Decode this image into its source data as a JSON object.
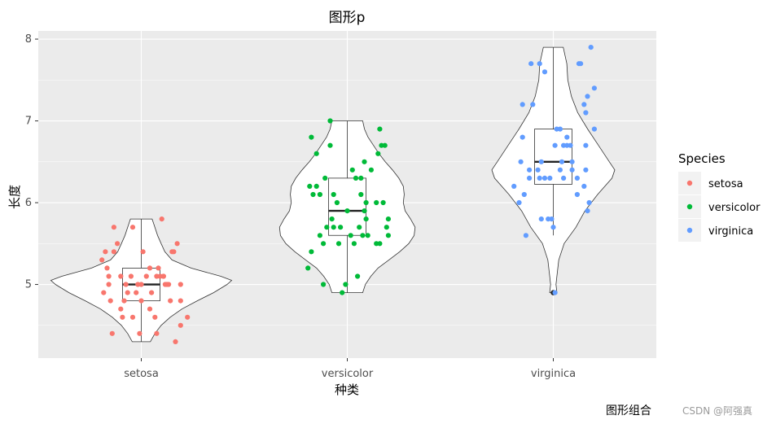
{
  "caption": "图形组合",
  "watermark": "CSDN @阿强真",
  "chart_data": {
    "type": "violin",
    "title": "图形p",
    "xlabel": "种类",
    "ylabel": "长度",
    "ylim": [
      4.1,
      8.1
    ],
    "yticks": [
      5,
      6,
      7,
      8
    ],
    "categories": [
      "setosa",
      "versicolor",
      "virginica"
    ],
    "legend": {
      "title": "Species",
      "position": "right",
      "entries": [
        {
          "name": "setosa",
          "color": "#F8766D"
        },
        {
          "name": "versicolor",
          "color": "#00BA38"
        },
        {
          "name": "virginica",
          "color": "#619CFF"
        }
      ]
    },
    "panel_background": "#EBEBEB",
    "grid": true,
    "violins": [
      {
        "category": "setosa",
        "min": 4.3,
        "max": 5.8,
        "widths": [
          [
            4.3,
            0.1
          ],
          [
            4.4,
            0.15
          ],
          [
            4.5,
            0.22
          ],
          [
            4.6,
            0.32
          ],
          [
            4.7,
            0.45
          ],
          [
            4.8,
            0.62
          ],
          [
            4.9,
            0.8
          ],
          [
            5.0,
            0.95
          ],
          [
            5.05,
            1.0
          ],
          [
            5.1,
            0.88
          ],
          [
            5.2,
            0.55
          ],
          [
            5.3,
            0.34
          ],
          [
            5.4,
            0.26
          ],
          [
            5.5,
            0.22
          ],
          [
            5.6,
            0.18
          ],
          [
            5.7,
            0.15
          ],
          [
            5.8,
            0.12
          ]
        ]
      },
      {
        "category": "versicolor",
        "min": 4.9,
        "max": 7.0,
        "widths": [
          [
            4.9,
            0.17
          ],
          [
            5.0,
            0.2
          ],
          [
            5.1,
            0.26
          ],
          [
            5.2,
            0.34
          ],
          [
            5.3,
            0.46
          ],
          [
            5.4,
            0.58
          ],
          [
            5.5,
            0.68
          ],
          [
            5.6,
            0.74
          ],
          [
            5.7,
            0.75
          ],
          [
            5.8,
            0.7
          ],
          [
            5.9,
            0.64
          ],
          [
            6.0,
            0.62
          ],
          [
            6.1,
            0.63
          ],
          [
            6.2,
            0.62
          ],
          [
            6.3,
            0.57
          ],
          [
            6.4,
            0.5
          ],
          [
            6.5,
            0.42
          ],
          [
            6.6,
            0.35
          ],
          [
            6.7,
            0.29
          ],
          [
            6.8,
            0.23
          ],
          [
            6.9,
            0.19
          ],
          [
            7.0,
            0.17
          ]
        ]
      },
      {
        "category": "virginica",
        "min": 4.9,
        "max": 7.9,
        "widths": [
          [
            4.9,
            0.04
          ],
          [
            5.0,
            0.03
          ],
          [
            5.1,
            0.04
          ],
          [
            5.3,
            0.06
          ],
          [
            5.5,
            0.12
          ],
          [
            5.7,
            0.25
          ],
          [
            5.9,
            0.35
          ],
          [
            6.1,
            0.49
          ],
          [
            6.3,
            0.65
          ],
          [
            6.4,
            0.68
          ],
          [
            6.5,
            0.62
          ],
          [
            6.7,
            0.5
          ],
          [
            6.9,
            0.38
          ],
          [
            7.1,
            0.27
          ],
          [
            7.3,
            0.2
          ],
          [
            7.5,
            0.16
          ],
          [
            7.7,
            0.15
          ],
          [
            7.9,
            0.11
          ]
        ]
      }
    ],
    "boxplots": [
      {
        "category": "setosa",
        "lower_whisker": 4.3,
        "q1": 4.8,
        "median": 5.0,
        "q3": 5.2,
        "upper_whisker": 5.8,
        "outliers": []
      },
      {
        "category": "versicolor",
        "lower_whisker": 4.9,
        "q1": 5.6,
        "median": 5.9,
        "q3": 6.3,
        "upper_whisker": 7.0,
        "outliers": []
      },
      {
        "category": "virginica",
        "lower_whisker": 5.6,
        "q1": 6.225,
        "median": 6.5,
        "q3": 6.9,
        "upper_whisker": 7.9,
        "outliers": [
          4.9
        ]
      }
    ],
    "points": [
      {
        "series": "setosa",
        "x": [
          0.13,
          -0.08,
          0.05,
          0.27,
          0.16,
          -0.16,
          0.08,
          0.15,
          -0.01,
          -0.22,
          0.01,
          -0.1,
          -0.18,
          0.2,
          0.12,
          -0.05,
          0.18,
          -0.12,
          -0.16,
          0.11,
          -0.21,
          0.03,
          -0.11,
          0.13,
          0.23,
          -0.09,
          -0.19,
          -0.2,
          0.1,
          -0.12,
          0.0,
          0.19,
          0.05,
          -0.14,
          -0.03,
          0.14,
          0.21,
          0.06,
          0.09,
          -0.19,
          0.0,
          0.23,
          -0.17,
          -0.02,
          0.09,
          0.17,
          -0.06,
          -0.05,
          -0.23,
          0.23
        ],
        "y": [
          5.1,
          4.9,
          4.7,
          4.6,
          5.0,
          5.4,
          4.6,
          5.0,
          4.4,
          4.9,
          5.4,
          4.8,
          4.8,
          4.3,
          5.8,
          5.7,
          5.4,
          5.1,
          5.7,
          5.1,
          5.4,
          5.1,
          4.6,
          5.1,
          4.8,
          5.0,
          5.0,
          5.2,
          5.2,
          4.7,
          4.8,
          5.4,
          5.2,
          5.5,
          4.9,
          5.0,
          5.5,
          4.9,
          4.4,
          5.1,
          5.0,
          4.5,
          4.4,
          5.0,
          5.1,
          4.8,
          5.1,
          4.6,
          5.3,
          5.0
        ]
      },
      {
        "series": "versicolor",
        "x": [
          -0.1,
          0.14,
          0.19,
          -0.14,
          0.1,
          0.23,
          0.05,
          -0.03,
          0.18,
          -0.23,
          -0.14,
          0.0,
          0.11,
          -0.2,
          0.24,
          0.2,
          0.12,
          -0.09,
          -0.22,
          -0.16,
          0.1,
          -0.16,
          0.08,
          -0.08,
          0.03,
          -0.18,
          -0.21,
          -0.1,
          0.21,
          0.07,
          -0.05,
          0.17,
          0.24,
          0.17,
          -0.21,
          -0.06,
          0.22,
          -0.13,
          0.09,
          0.19,
          0.04,
          0.08,
          0.11,
          -0.01,
          0.02,
          -0.12,
          -0.04,
          -0.18,
          0.06,
          -0.08
        ],
        "y": [
          7.0,
          6.4,
          6.9,
          5.5,
          6.5,
          5.7,
          6.3,
          4.9,
          6.6,
          5.2,
          5.0,
          5.9,
          6.0,
          6.1,
          5.6,
          6.7,
          5.6,
          5.8,
          6.2,
          5.6,
          5.9,
          6.1,
          6.3,
          6.1,
          6.4,
          6.6,
          6.8,
          6.7,
          6.0,
          5.7,
          5.5,
          5.5,
          5.8,
          6.0,
          5.4,
          6.0,
          6.7,
          6.3,
          5.6,
          5.5,
          5.5,
          6.1,
          5.8,
          5.0,
          5.6,
          5.7,
          5.7,
          6.2,
          5.1,
          5.7
        ]
      },
      {
        "series": "virginica",
        "x": [
          0.14,
          -0.01,
          0.19,
          -0.05,
          0.05,
          -0.05,
          0.01,
          0.2,
          0.08,
          0.18,
          -0.19,
          0.04,
          -0.18,
          0.0,
          -0.07,
          0.11,
          0.11,
          0.16,
          -0.08,
          0.21,
          0.02,
          -0.16,
          0.15,
          0.06,
          0.1,
          -0.18,
          0.18,
          -0.17,
          -0.09,
          -0.12,
          0.24,
          0.22,
          -0.14,
          -0.08,
          0.14,
          -0.13,
          -0.14,
          0.19,
          -0.2,
          0.24,
          0.19,
          0.04,
          -0.03,
          0.08,
          0.01,
          0.06,
          -0.02,
          -0.07,
          -0.23,
          0.2
        ],
        "y": [
          6.3,
          5.8,
          7.1,
          6.3,
          6.5,
          7.6,
          4.9,
          7.3,
          6.7,
          7.2,
          6.5,
          6.4,
          6.8,
          5.7,
          5.8,
          6.4,
          6.5,
          7.7,
          7.7,
          6.0,
          6.9,
          5.6,
          7.7,
          6.3,
          6.7,
          7.2,
          6.2,
          6.1,
          6.4,
          7.2,
          7.4,
          7.9,
          6.4,
          6.3,
          6.1,
          7.7,
          6.3,
          6.4,
          6.0,
          6.9,
          6.7,
          6.9,
          5.8,
          6.8,
          6.7,
          6.7,
          6.3,
          6.5,
          6.2,
          5.9
        ]
      }
    ]
  }
}
